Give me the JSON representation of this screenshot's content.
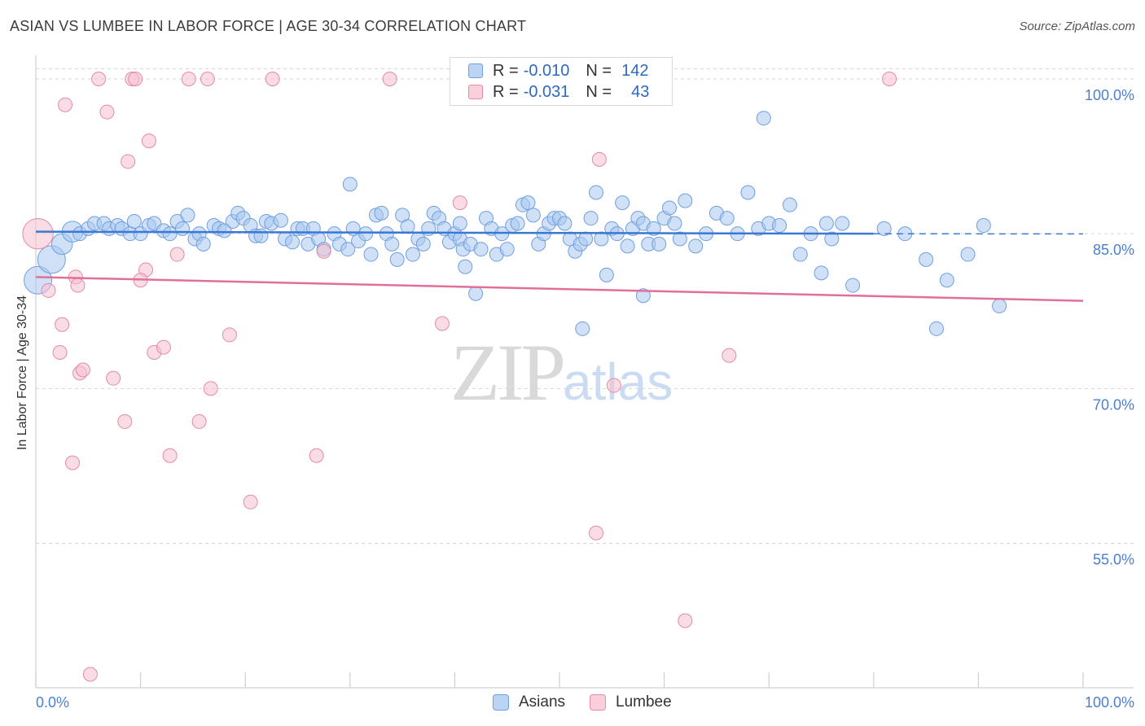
{
  "header": {
    "title": "ASIAN VS LUMBEE IN LABOR FORCE | AGE 30-34 CORRELATION CHART",
    "source": "Source: ZipAtlas.com"
  },
  "watermark": {
    "zip": "ZIP",
    "atlas": "atlas"
  },
  "legend": {
    "asians": {
      "r_label": "R =",
      "r_value": "-0.010",
      "n_label": "N =",
      "n_value": "142"
    },
    "lumbee": {
      "r_label": "R =",
      "r_value": "-0.031",
      "n_label": "N =",
      "n_value": "43"
    }
  },
  "bottom_legend": {
    "asians": "Asians",
    "lumbee": "Lumbee"
  },
  "colors": {
    "asians_fill": "#a9c8f0",
    "asians_stroke": "#6f9fdf",
    "asians_line": "#3a78d6",
    "lumbee_fill": "#f6bfd0",
    "lumbee_stroke": "#e58aa8",
    "lumbee_line": "#e0709a",
    "grid": "#d6d6d6",
    "tick_text": "#4a7fd4"
  },
  "chart_data": {
    "type": "scatter",
    "title": "ASIAN VS LUMBEE IN LABOR FORCE | AGE 30-34 CORRELATION CHART",
    "xlabel": "",
    "ylabel": "In Labor Force | Age 30-34",
    "xlim": [
      0,
      100
    ],
    "ylim": [
      41,
      101.5
    ],
    "x_tick_labels": [
      "0.0%",
      "100.0%"
    ],
    "y_ticks": [
      55,
      70,
      85,
      100
    ],
    "y_tick_labels": [
      "55.0%",
      "70.0%",
      "85.0%",
      "100.0%"
    ],
    "grid": true,
    "series": [
      {
        "name": "Asians",
        "trend": {
          "x": [
            0,
            80
          ],
          "y": [
            85.2,
            85.0
          ],
          "dashed_to": [
            80,
            100
          ]
        },
        "points": [
          [
            0.2,
            80.5,
            2
          ],
          [
            1.5,
            82.5,
            2
          ],
          [
            2.5,
            84.0,
            1.5
          ],
          [
            3.5,
            85.2,
            1.5
          ],
          [
            4.2,
            85.0,
            1
          ],
          [
            5,
            85.5,
            1
          ],
          [
            5.6,
            86.0,
            1
          ],
          [
            6.5,
            86.0,
            1
          ],
          [
            7,
            85.5,
            1
          ],
          [
            7.8,
            85.8,
            1
          ],
          [
            8.2,
            85.5,
            1
          ],
          [
            9,
            85.0,
            1
          ],
          [
            9.4,
            86.2,
            1
          ],
          [
            10,
            85.0,
            1
          ],
          [
            10.8,
            85.8,
            1
          ],
          [
            11.3,
            86.0,
            1
          ],
          [
            12.2,
            85.3,
            1
          ],
          [
            12.8,
            85.0,
            1
          ],
          [
            13.5,
            86.2,
            1
          ],
          [
            14,
            85.5,
            1
          ],
          [
            14.5,
            86.8,
            1
          ],
          [
            15.2,
            84.5,
            1
          ],
          [
            15.6,
            85.0,
            1
          ],
          [
            16,
            84.0,
            1
          ],
          [
            17,
            85.8,
            1
          ],
          [
            17.5,
            85.5,
            1
          ],
          [
            18,
            85.3,
            1
          ],
          [
            18.8,
            86.2,
            1
          ],
          [
            19.3,
            87.0,
            1
          ],
          [
            19.8,
            86.5,
            1
          ],
          [
            20.5,
            85.8,
            1
          ],
          [
            21,
            84.8,
            1
          ],
          [
            21.5,
            84.8,
            1
          ],
          [
            22,
            86.2,
            1
          ],
          [
            22.5,
            86.0,
            1
          ],
          [
            23.4,
            86.3,
            1
          ],
          [
            23.8,
            84.5,
            1
          ],
          [
            24.5,
            84.2,
            1
          ],
          [
            25,
            85.5,
            1
          ],
          [
            25.5,
            85.5,
            1
          ],
          [
            26,
            84.0,
            1
          ],
          [
            26.5,
            85.5,
            1
          ],
          [
            27,
            84.5,
            1
          ],
          [
            27.5,
            83.5,
            1
          ],
          [
            28.5,
            85.0,
            1
          ],
          [
            29,
            84.0,
            1
          ],
          [
            29.8,
            83.5,
            1
          ],
          [
            30.3,
            85.5,
            1
          ],
          [
            30.8,
            84.3,
            1
          ],
          [
            31.5,
            85.0,
            1
          ],
          [
            32,
            83.0,
            1
          ],
          [
            32.5,
            86.8,
            1
          ],
          [
            33,
            87.0,
            1
          ],
          [
            33.5,
            85.0,
            1
          ],
          [
            34,
            84.0,
            1
          ],
          [
            34.5,
            82.5,
            1
          ],
          [
            35,
            86.8,
            1
          ],
          [
            35.5,
            85.7,
            1
          ],
          [
            36,
            83.0,
            1
          ],
          [
            36.5,
            84.5,
            1
          ],
          [
            37,
            84.0,
            1
          ],
          [
            37.5,
            85.5,
            1
          ],
          [
            38,
            87.0,
            1
          ],
          [
            38.5,
            86.5,
            1
          ],
          [
            39,
            85.5,
            1
          ],
          [
            39.5,
            84.2,
            1
          ],
          [
            40,
            85.0,
            1
          ],
          [
            40.5,
            84.5,
            1
          ],
          [
            40.8,
            83.5,
            1
          ],
          [
            41,
            81.8,
            1
          ],
          [
            41.5,
            84.0,
            1
          ],
          [
            42,
            79.2,
            1
          ],
          [
            42.5,
            83.5,
            1
          ],
          [
            43,
            86.5,
            1
          ],
          [
            43.5,
            85.5,
            1
          ],
          [
            44,
            83.0,
            1
          ],
          [
            44.5,
            85.0,
            1
          ],
          [
            45,
            83.5,
            1
          ],
          [
            45.5,
            85.8,
            1
          ],
          [
            46,
            86.0,
            1
          ],
          [
            46.5,
            87.8,
            1
          ],
          [
            47,
            88.0,
            1
          ],
          [
            47.5,
            86.8,
            1
          ],
          [
            48,
            84.0,
            1
          ],
          [
            48.5,
            85.0,
            1
          ],
          [
            49,
            86.0,
            1
          ],
          [
            49.5,
            86.5,
            1
          ],
          [
            50,
            86.5,
            1
          ],
          [
            50.5,
            86.0,
            1
          ],
          [
            51,
            84.5,
            1
          ],
          [
            51.5,
            83.3,
            1
          ],
          [
            52,
            84.0,
            1
          ],
          [
            52.5,
            84.5,
            1
          ],
          [
            53,
            86.5,
            1
          ],
          [
            53.5,
            89.0,
            1
          ],
          [
            54,
            84.5,
            1
          ],
          [
            54.5,
            81.0,
            1
          ],
          [
            55,
            85.5,
            1
          ],
          [
            55.5,
            85.0,
            1
          ],
          [
            56,
            88.0,
            1
          ],
          [
            56.5,
            83.8,
            1
          ],
          [
            57,
            85.5,
            1
          ],
          [
            57.5,
            86.5,
            1
          ],
          [
            58,
            86.0,
            1
          ],
          [
            58.5,
            84.0,
            1
          ],
          [
            59,
            85.5,
            1
          ],
          [
            59.5,
            84.0,
            1
          ],
          [
            60,
            86.5,
            1
          ],
          [
            60.5,
            87.5,
            1
          ],
          [
            61,
            86.0,
            1
          ],
          [
            61.5,
            84.5,
            1
          ],
          [
            62,
            88.2,
            1
          ],
          [
            63,
            83.8,
            1
          ],
          [
            64,
            85.0,
            1
          ],
          [
            65,
            87.0,
            1
          ],
          [
            66,
            86.5,
            1
          ],
          [
            67,
            85.0,
            1
          ],
          [
            68,
            89.0,
            1
          ],
          [
            69,
            85.5,
            1
          ],
          [
            70,
            86.0,
            1
          ],
          [
            71,
            85.8,
            1
          ],
          [
            72,
            87.8,
            1
          ],
          [
            73,
            83.0,
            1
          ],
          [
            74,
            85.0,
            1
          ],
          [
            75,
            81.2,
            1
          ],
          [
            75.5,
            86.0,
            1
          ],
          [
            76,
            84.5,
            1
          ],
          [
            77,
            86.0,
            1
          ],
          [
            78,
            80.0,
            1
          ],
          [
            81,
            85.5,
            1
          ],
          [
            85,
            82.5,
            1
          ],
          [
            87,
            80.5,
            1
          ],
          [
            89,
            83.0,
            1
          ],
          [
            90.5,
            85.8,
            1
          ],
          [
            92,
            78.0,
            1
          ],
          [
            52.2,
            75.8,
            1
          ],
          [
            86,
            75.8,
            1
          ],
          [
            69.5,
            96.2,
            1
          ],
          [
            30,
            89.8,
            1
          ],
          [
            40.5,
            86.0,
            1
          ],
          [
            83,
            85.0,
            1
          ],
          [
            58,
            79.0,
            1
          ]
        ]
      },
      {
        "name": "Lumbee",
        "trend": {
          "x": [
            0,
            100
          ],
          "y": [
            80.8,
            78.5
          ]
        },
        "points": [
          [
            0.2,
            85.0,
            2.2
          ],
          [
            1.2,
            79.5,
            1
          ],
          [
            2.3,
            73.5,
            1
          ],
          [
            2.5,
            76.2,
            1
          ],
          [
            2.8,
            97.5,
            1
          ],
          [
            3.5,
            62.8,
            1
          ],
          [
            3.8,
            80.8,
            1
          ],
          [
            4.2,
            71.5,
            1
          ],
          [
            4.5,
            71.8,
            1
          ],
          [
            5.2,
            42.3,
            1
          ],
          [
            6,
            100.0,
            1
          ],
          [
            6.8,
            96.8,
            1
          ],
          [
            7.4,
            71.0,
            1
          ],
          [
            8.5,
            66.8,
            1
          ],
          [
            8.8,
            92.0,
            1
          ],
          [
            9.2,
            100.0,
            1
          ],
          [
            9.5,
            100.0,
            1
          ],
          [
            10.5,
            81.5,
            1
          ],
          [
            10.8,
            94.0,
            1
          ],
          [
            11.3,
            73.5,
            1
          ],
          [
            12.2,
            74.0,
            1
          ],
          [
            12.8,
            63.5,
            1
          ],
          [
            13.5,
            83.0,
            1
          ],
          [
            14.6,
            100.0,
            1
          ],
          [
            15.6,
            66.8,
            1
          ],
          [
            16.4,
            100.0,
            1
          ],
          [
            16.7,
            70.0,
            1
          ],
          [
            18.5,
            75.2,
            1
          ],
          [
            20.5,
            59.0,
            1
          ],
          [
            22.6,
            100.0,
            1
          ],
          [
            26.8,
            63.5,
            1
          ],
          [
            33.8,
            100.0,
            1
          ],
          [
            38.8,
            76.3,
            1
          ],
          [
            40.5,
            88.0,
            1
          ],
          [
            53.5,
            56.0,
            1
          ],
          [
            53.8,
            92.2,
            1
          ],
          [
            55.2,
            70.3,
            1
          ],
          [
            62,
            47.5,
            1
          ],
          [
            66.2,
            73.2,
            1
          ],
          [
            81.5,
            100.0,
            1
          ],
          [
            10.0,
            80.5,
            1
          ],
          [
            4.0,
            80.0,
            1
          ],
          [
            27.5,
            83.3,
            1
          ]
        ]
      }
    ]
  }
}
